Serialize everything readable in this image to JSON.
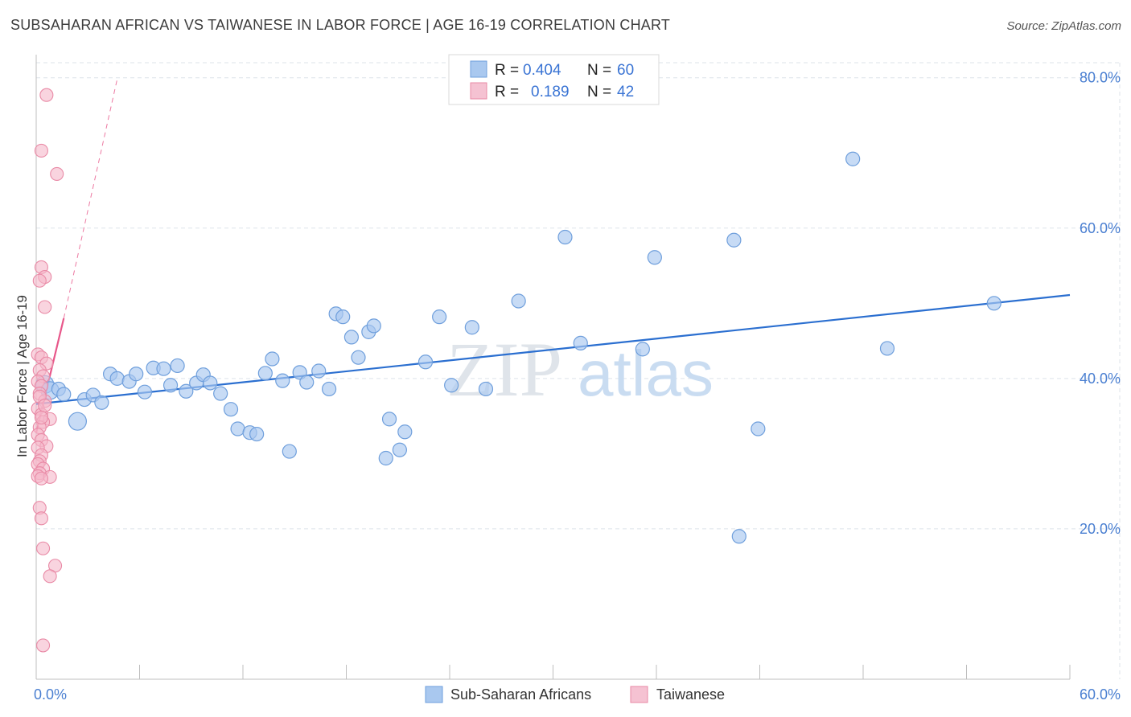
{
  "header": {
    "title": "SUBSAHARAN AFRICAN VS TAIWANESE IN LABOR FORCE | AGE 16-19 CORRELATION CHART",
    "source": "Source: ZipAtlas.com"
  },
  "legend_top": {
    "rows": [
      {
        "r_label": "R =",
        "r_value": "0.404",
        "n_label": "N =",
        "n_value": "60"
      },
      {
        "r_label": "R =",
        "r_value": "0.189",
        "n_label": "N =",
        "n_value": "42"
      }
    ]
  },
  "legend_bottom": {
    "items": [
      "Sub-Saharan Africans",
      "Taiwanese"
    ]
  },
  "watermark": {
    "zip": "ZIP",
    "atlas": "atlas"
  },
  "colors": {
    "blue_fill": "#a9c8ef",
    "blue_stroke": "#6f9fdc",
    "blue_line": "#2b6fd0",
    "pink_fill": "#f5b7c9",
    "pink_stroke": "#e98aa6",
    "pink_line": "#e8578a",
    "grid": "#dde3ea",
    "tick_text": "#4a7fd1"
  },
  "chart_data": {
    "type": "scatter",
    "title": "SUBSAHARAN AFRICAN VS TAIWANESE IN LABOR FORCE | AGE 16-19 CORRELATION CHART",
    "xlabel": "",
    "ylabel": "In Labor Force | Age 16-19",
    "xlim": [
      0,
      60
    ],
    "ylim": [
      0,
      82
    ],
    "x_tick_labels": [
      "0.0%",
      "60.0%"
    ],
    "y_ticks": [
      20,
      40,
      60,
      80
    ],
    "y_tick_labels": [
      "20.0%",
      "40.0%",
      "60.0%",
      "80.0%"
    ],
    "grid": true,
    "legend": "top-center",
    "series": [
      {
        "name": "Sub-Saharan Africans",
        "r": 0.404,
        "n": 60,
        "points": [
          [
            0.5,
            39.2
          ],
          [
            0.8,
            38.4
          ],
          [
            1.3,
            38.6
          ],
          [
            1.6,
            37.9
          ],
          [
            2.4,
            34.3
          ],
          [
            2.8,
            37.2
          ],
          [
            3.3,
            37.8
          ],
          [
            3.8,
            36.8
          ],
          [
            4.3,
            40.6
          ],
          [
            4.7,
            40.0
          ],
          [
            5.4,
            39.6
          ],
          [
            5.8,
            40.6
          ],
          [
            6.3,
            38.2
          ],
          [
            6.8,
            41.4
          ],
          [
            7.4,
            41.3
          ],
          [
            7.8,
            39.1
          ],
          [
            8.2,
            41.7
          ],
          [
            8.7,
            38.3
          ],
          [
            9.3,
            39.4
          ],
          [
            9.7,
            40.5
          ],
          [
            10.1,
            39.4
          ],
          [
            10.7,
            38.0
          ],
          [
            11.3,
            35.9
          ],
          [
            11.7,
            33.3
          ],
          [
            12.4,
            32.8
          ],
          [
            12.8,
            32.6
          ],
          [
            13.3,
            40.7
          ],
          [
            13.7,
            42.6
          ],
          [
            14.3,
            39.7
          ],
          [
            14.7,
            30.3
          ],
          [
            15.3,
            40.8
          ],
          [
            15.7,
            39.5
          ],
          [
            16.4,
            41.0
          ],
          [
            17.0,
            38.6
          ],
          [
            17.4,
            48.6
          ],
          [
            17.8,
            48.2
          ],
          [
            18.3,
            45.5
          ],
          [
            18.7,
            42.8
          ],
          [
            19.3,
            46.2
          ],
          [
            19.6,
            47.0
          ],
          [
            20.3,
            29.4
          ],
          [
            20.5,
            34.6
          ],
          [
            21.1,
            30.5
          ],
          [
            21.4,
            32.9
          ],
          [
            22.6,
            42.2
          ],
          [
            23.4,
            48.2
          ],
          [
            24.1,
            39.1
          ],
          [
            25.3,
            46.8
          ],
          [
            26.1,
            38.6
          ],
          [
            28.0,
            50.3
          ],
          [
            30.7,
            58.8
          ],
          [
            31.6,
            44.7
          ],
          [
            35.2,
            43.9
          ],
          [
            35.9,
            56.1
          ],
          [
            40.5,
            58.4
          ],
          [
            40.8,
            19.0
          ],
          [
            41.9,
            33.3
          ],
          [
            47.4,
            69.2
          ],
          [
            49.4,
            44.0
          ],
          [
            55.6,
            50.0
          ]
        ]
      },
      {
        "name": "Taiwanese",
        "r": 0.189,
        "n": 42,
        "points": [
          [
            0.6,
            77.7
          ],
          [
            0.3,
            70.3
          ],
          [
            1.2,
            67.2
          ],
          [
            0.3,
            54.8
          ],
          [
            0.5,
            53.5
          ],
          [
            0.2,
            53.0
          ],
          [
            0.5,
            49.5
          ],
          [
            0.1,
            43.2
          ],
          [
            0.3,
            42.8
          ],
          [
            0.6,
            42.0
          ],
          [
            0.2,
            41.1
          ],
          [
            0.4,
            40.3
          ],
          [
            0.1,
            39.6
          ],
          [
            0.3,
            39.0
          ],
          [
            0.2,
            38.0
          ],
          [
            0.5,
            37.0
          ],
          [
            0.1,
            36.0
          ],
          [
            0.3,
            35.2
          ],
          [
            0.8,
            34.6
          ],
          [
            0.4,
            34.2
          ],
          [
            0.2,
            33.5
          ],
          [
            0.1,
            32.5
          ],
          [
            0.3,
            31.8
          ],
          [
            0.6,
            31.0
          ],
          [
            0.1,
            30.8
          ],
          [
            0.3,
            29.8
          ],
          [
            0.2,
            29.0
          ],
          [
            0.1,
            28.6
          ],
          [
            0.4,
            28.0
          ],
          [
            0.2,
            27.4
          ],
          [
            0.1,
            27.0
          ],
          [
            0.8,
            26.9
          ],
          [
            0.3,
            26.7
          ],
          [
            0.2,
            22.8
          ],
          [
            0.3,
            21.4
          ],
          [
            0.4,
            17.4
          ],
          [
            1.1,
            15.1
          ],
          [
            0.8,
            13.7
          ],
          [
            0.4,
            4.5
          ],
          [
            0.2,
            37.6
          ],
          [
            0.5,
            36.4
          ],
          [
            0.3,
            34.8
          ]
        ]
      }
    ],
    "trend_lines": [
      {
        "series": "Sub-Saharan Africans",
        "x": [
          0,
          60
        ],
        "y": [
          36.6,
          51.1
        ]
      },
      {
        "series": "Taiwanese",
        "x": [
          0,
          1.6
        ],
        "y": [
          32.8,
          48.0
        ],
        "dashed_extension": {
          "x": [
            1.6,
            4.7
          ],
          "y": [
            48.0,
            79.8
          ]
        }
      }
    ]
  }
}
